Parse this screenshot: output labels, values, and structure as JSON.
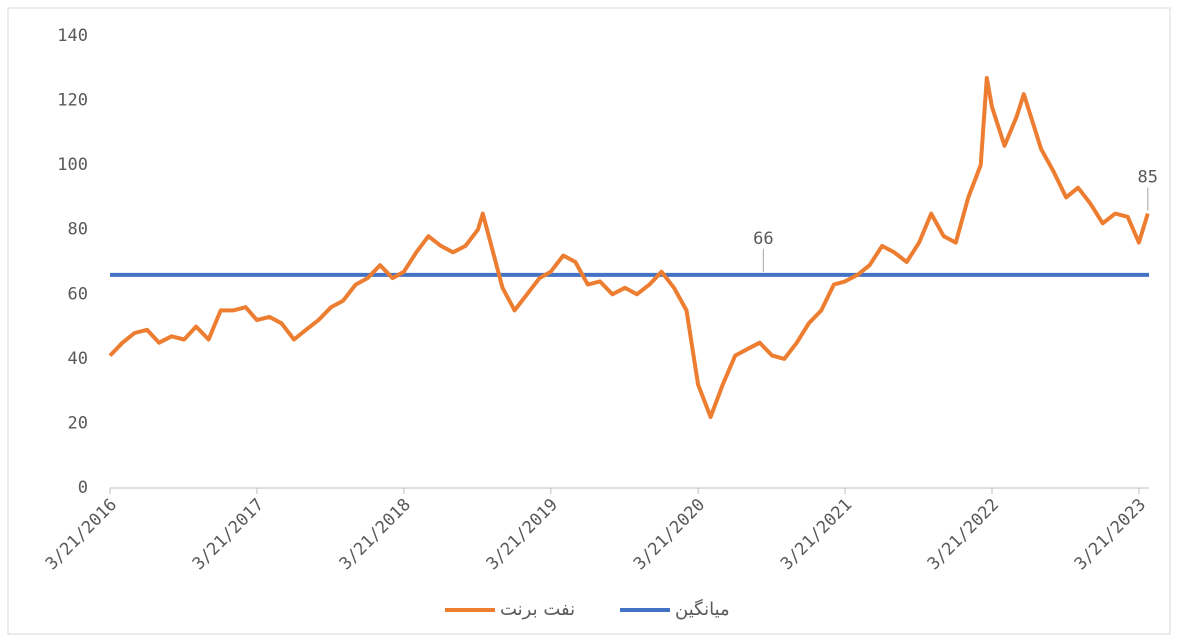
{
  "chart_data": {
    "type": "line",
    "xlim": [
      "3/21/2016",
      "4/15/2023"
    ],
    "xticks": [
      "3/21/2016",
      "3/21/2017",
      "3/21/2018",
      "3/21/2019",
      "3/21/2020",
      "3/21/2021",
      "3/21/2022",
      "3/21/2023"
    ],
    "ylim": [
      0,
      140
    ],
    "yticks": [
      0,
      20,
      40,
      60,
      80,
      100,
      120,
      140
    ],
    "grid": false,
    "legend": "bottom",
    "series": [
      {
        "name": "نفت برنت",
        "color": "#ed7d31",
        "label_index": 86,
        "x": [
          "3/21/2016",
          "4/21/2016",
          "5/21/2016",
          "6/21/2016",
          "7/21/2016",
          "8/21/2016",
          "9/21/2016",
          "10/21/2016",
          "11/21/2016",
          "12/21/2016",
          "1/21/2017",
          "2/21/2017",
          "3/21/2017",
          "4/21/2017",
          "5/21/2017",
          "6/21/2017",
          "7/21/2017",
          "8/21/2017",
          "9/21/2017",
          "10/21/2017",
          "11/21/2017",
          "12/21/2017",
          "1/21/2018",
          "2/21/2018",
          "3/21/2018",
          "4/21/2018",
          "5/21/2018",
          "6/21/2018",
          "7/21/2018",
          "8/21/2018",
          "9/21/2018",
          "10/3/2018",
          "11/21/2018",
          "12/21/2018",
          "1/21/2019",
          "2/21/2019",
          "3/21/2019",
          "4/21/2019",
          "5/21/2019",
          "6/21/2019",
          "7/21/2019",
          "8/21/2019",
          "9/21/2019",
          "10/21/2019",
          "11/21/2019",
          "12/21/2019",
          "1/21/2020",
          "2/21/2020",
          "3/21/2020",
          "4/21/2020",
          "5/21/2020",
          "6/21/2020",
          "7/21/2020",
          "8/21/2020",
          "9/21/2020",
          "10/21/2020",
          "11/21/2020",
          "12/21/2020",
          "1/21/2021",
          "2/21/2021",
          "3/21/2021",
          "4/21/2021",
          "5/21/2021",
          "6/21/2021",
          "7/21/2021",
          "8/21/2021",
          "9/21/2021",
          "10/21/2021",
          "11/21/2021",
          "12/21/2021",
          "1/21/2022",
          "2/21/2022",
          "3/8/2022",
          "3/21/2022",
          "4/21/2022",
          "5/21/2022",
          "6/8/2022",
          "7/21/2022",
          "8/21/2022",
          "9/21/2022",
          "10/21/2022",
          "11/21/2022",
          "12/21/2022",
          "1/21/2023",
          "2/21/2023",
          "3/21/2023",
          "4/12/2023"
        ],
        "values": [
          41,
          45,
          48,
          49,
          45,
          47,
          46,
          50,
          46,
          55,
          55,
          56,
          52,
          53,
          51,
          46,
          49,
          52,
          56,
          58,
          63,
          65,
          69,
          65,
          67,
          73,
          78,
          75,
          73,
          75,
          80,
          85,
          62,
          55,
          60,
          65,
          67,
          72,
          70,
          63,
          64,
          60,
          62,
          60,
          63,
          67,
          62,
          55,
          32,
          22,
          32,
          41,
          43,
          45,
          41,
          40,
          45,
          51,
          55,
          63,
          64,
          66,
          69,
          75,
          73,
          70,
          76,
          85,
          78,
          76,
          90,
          100,
          127,
          118,
          106,
          115,
          122,
          105,
          98,
          90,
          93,
          88,
          82,
          85,
          84,
          76,
          85
        ]
      },
      {
        "name": "میانگین",
        "color": "#4472c4",
        "label_index": 1,
        "x": [
          "3/21/2016",
          "8/30/2020",
          "4/15/2023"
        ],
        "values": [
          66,
          66,
          66
        ]
      }
    ]
  }
}
